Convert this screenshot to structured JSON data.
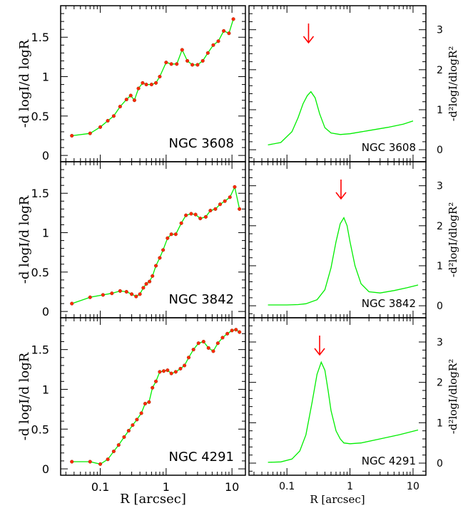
{
  "chart_data": [
    {
      "type": "line",
      "column": "left",
      "row": 0,
      "galaxy": "NGC 3608",
      "ylabel": "-d logI/d logR",
      "xlabel": "",
      "xscale": "log",
      "xlim": [
        0.025,
        16
      ],
      "ylim": [
        -0.08,
        1.9
      ],
      "xticks": [
        0.1,
        1,
        10
      ],
      "xtick_labels": [],
      "yticks": [
        0,
        0.5,
        1,
        1.5
      ],
      "ytick_labels": [
        "0",
        "0.5",
        "1",
        "1.5"
      ],
      "line_color": "#00ee00",
      "marker_color": "#ff2a00",
      "x": [
        0.037,
        0.07,
        0.1,
        0.13,
        0.16,
        0.2,
        0.25,
        0.29,
        0.33,
        0.38,
        0.44,
        0.5,
        0.6,
        0.7,
        0.8,
        1.0,
        1.2,
        1.45,
        1.75,
        2.1,
        2.5,
        3.0,
        3.6,
        4.3,
        5.2,
        6.2,
        7.5,
        9.0,
        10.5
      ],
      "y": [
        0.25,
        0.28,
        0.36,
        0.44,
        0.5,
        0.62,
        0.71,
        0.76,
        0.7,
        0.85,
        0.92,
        0.9,
        0.9,
        0.92,
        1.0,
        1.18,
        1.16,
        1.16,
        1.34,
        1.2,
        1.15,
        1.15,
        1.2,
        1.3,
        1.4,
        1.45,
        1.58,
        1.55,
        1.73
      ]
    },
    {
      "type": "line",
      "column": "left",
      "row": 1,
      "galaxy": "NGC 3842",
      "ylabel": "-d logI/d logR",
      "xlabel": "",
      "xscale": "log",
      "xlim": [
        0.025,
        16
      ],
      "ylim": [
        -0.08,
        1.9
      ],
      "xticks": [
        0.1,
        1,
        10
      ],
      "xtick_labels": [],
      "yticks": [
        0,
        0.5,
        1,
        1.5
      ],
      "ytick_labels": [
        "0",
        "0.5",
        "1",
        "1.5"
      ],
      "line_color": "#00ee00",
      "marker_color": "#ff2a00",
      "x": [
        0.037,
        0.07,
        0.11,
        0.15,
        0.2,
        0.25,
        0.3,
        0.35,
        0.4,
        0.45,
        0.5,
        0.56,
        0.62,
        0.7,
        0.8,
        0.9,
        1.05,
        1.2,
        1.4,
        1.7,
        2.0,
        2.4,
        2.8,
        3.3,
        4.0,
        4.7,
        5.6,
        6.6,
        7.8,
        9.3,
        11.0,
        13.0
      ],
      "y": [
        0.1,
        0.18,
        0.21,
        0.23,
        0.26,
        0.25,
        0.22,
        0.19,
        0.22,
        0.3,
        0.35,
        0.38,
        0.45,
        0.58,
        0.68,
        0.78,
        0.93,
        0.98,
        0.98,
        1.12,
        1.22,
        1.24,
        1.23,
        1.18,
        1.2,
        1.28,
        1.3,
        1.36,
        1.4,
        1.45,
        1.58,
        1.3
      ]
    },
    {
      "type": "line",
      "column": "left",
      "row": 2,
      "galaxy": "NGC 4291",
      "ylabel": "-d logI/d logR",
      "xlabel": "R [arcsec]",
      "xscale": "log",
      "xlim": [
        0.025,
        16
      ],
      "ylim": [
        -0.08,
        1.9
      ],
      "xticks": [
        0.1,
        1,
        10
      ],
      "xtick_labels": [
        "0.1",
        "1",
        "10"
      ],
      "yticks": [
        0,
        0.5,
        1,
        1.5
      ],
      "ytick_labels": [
        "0",
        "0.5",
        "1",
        "1.5"
      ],
      "line_color": "#00ee00",
      "marker_color": "#ff2a00",
      "x": [
        0.037,
        0.07,
        0.1,
        0.13,
        0.16,
        0.19,
        0.23,
        0.27,
        0.31,
        0.36,
        0.42,
        0.48,
        0.55,
        0.62,
        0.7,
        0.8,
        0.92,
        1.05,
        1.2,
        1.4,
        1.65,
        1.9,
        2.2,
        2.6,
        3.1,
        3.7,
        4.4,
        5.2,
        6.1,
        7.2,
        8.5,
        10.0,
        11.5,
        13.0
      ],
      "y": [
        0.09,
        0.09,
        0.06,
        0.12,
        0.22,
        0.3,
        0.4,
        0.48,
        0.55,
        0.62,
        0.7,
        0.82,
        0.84,
        1.02,
        1.1,
        1.22,
        1.23,
        1.24,
        1.2,
        1.22,
        1.26,
        1.3,
        1.4,
        1.5,
        1.58,
        1.6,
        1.52,
        1.48,
        1.58,
        1.65,
        1.7,
        1.74,
        1.75,
        1.72
      ]
    },
    {
      "type": "line",
      "column": "right",
      "row": 0,
      "galaxy": "NGC 3608",
      "ylabel": "-d²logI/dlogR²",
      "xlabel": "",
      "xscale": "log",
      "xlim": [
        0.025,
        16
      ],
      "ylim": [
        -0.3,
        3.6
      ],
      "xticks": [
        0.1,
        1,
        10
      ],
      "xtick_labels": [],
      "yticks": [
        0,
        1,
        2,
        3
      ],
      "ytick_labels": [
        "0",
        "1",
        "2",
        "3"
      ],
      "line_color": "#00ee00",
      "arrow_color": "#ff0000",
      "arrow_x": 0.22,
      "x": [
        0.05,
        0.08,
        0.12,
        0.15,
        0.18,
        0.21,
        0.24,
        0.28,
        0.33,
        0.4,
        0.5,
        0.7,
        1.0,
        2.0,
        4.0,
        7.0,
        10.0
      ],
      "y": [
        0.12,
        0.18,
        0.45,
        0.8,
        1.15,
        1.35,
        1.45,
        1.3,
        0.9,
        0.55,
        0.42,
        0.38,
        0.4,
        0.48,
        0.56,
        0.64,
        0.72
      ]
    },
    {
      "type": "line",
      "column": "right",
      "row": 1,
      "galaxy": "NGC 3842",
      "ylabel": "-d²logI/dlogR²",
      "xlabel": "",
      "xscale": "log",
      "xlim": [
        0.025,
        16
      ],
      "ylim": [
        -0.3,
        3.6
      ],
      "xticks": [
        0.1,
        1,
        10
      ],
      "xtick_labels": [],
      "yticks": [
        0,
        1,
        2,
        3
      ],
      "ytick_labels": [
        "0",
        "1",
        "2",
        "3"
      ],
      "line_color": "#00ee00",
      "arrow_color": "#ff0000",
      "arrow_x": 0.72,
      "x": [
        0.05,
        0.1,
        0.15,
        0.2,
        0.3,
        0.4,
        0.5,
        0.6,
        0.7,
        0.8,
        0.9,
        1.0,
        1.2,
        1.5,
        2.0,
        3.0,
        5.0,
        8.0,
        12.0
      ],
      "y": [
        0.02,
        0.02,
        0.03,
        0.05,
        0.15,
        0.4,
        0.95,
        1.6,
        2.05,
        2.2,
        2.0,
        1.6,
        1.0,
        0.55,
        0.35,
        0.32,
        0.38,
        0.45,
        0.52
      ]
    },
    {
      "type": "line",
      "column": "right",
      "row": 2,
      "galaxy": "NGC 4291",
      "ylabel": "-d²logI/dlogR²",
      "xlabel": "R [arcsec]",
      "xscale": "log",
      "xlim": [
        0.025,
        16
      ],
      "ylim": [
        -0.3,
        3.6
      ],
      "xticks": [
        0.1,
        1,
        10
      ],
      "xtick_labels": [
        "0.1",
        "1",
        "10"
      ],
      "yticks": [
        0,
        1,
        2,
        3
      ],
      "ytick_labels": [
        "0",
        "1",
        "2",
        "3"
      ],
      "line_color": "#00ee00",
      "arrow_color": "#ff0000",
      "arrow_x": 0.33,
      "x": [
        0.05,
        0.08,
        0.12,
        0.16,
        0.2,
        0.25,
        0.3,
        0.35,
        0.4,
        0.45,
        0.5,
        0.6,
        0.7,
        0.8,
        1.0,
        1.5,
        3.0,
        6.0,
        12.0
      ],
      "y": [
        0.02,
        0.03,
        0.1,
        0.3,
        0.7,
        1.5,
        2.2,
        2.5,
        2.3,
        1.8,
        1.3,
        0.8,
        0.6,
        0.5,
        0.48,
        0.5,
        0.6,
        0.7,
        0.82
      ]
    }
  ]
}
